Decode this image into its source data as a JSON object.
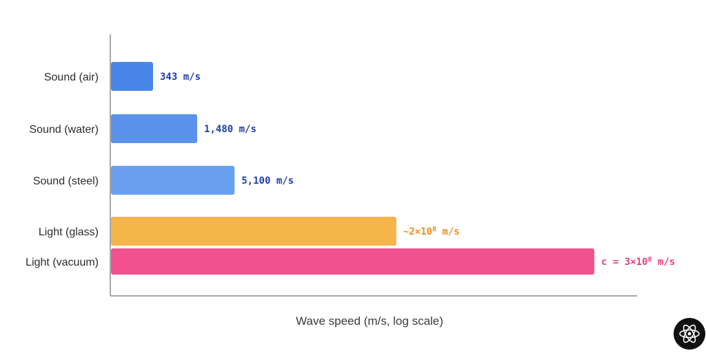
{
  "chart_data": {
    "type": "bar",
    "orientation": "horizontal",
    "xlabel": "Wave speed (m/s, log scale)",
    "ylabel": "",
    "title": "",
    "xscale": "log",
    "grid": false,
    "categories": [
      "Sound (air)",
      "Sound (water)",
      "Sound (steel)",
      "Light (glass)",
      "Light (vacuum)"
    ],
    "values": [
      343,
      1480,
      5100,
      200000000,
      300000000
    ],
    "value_labels": [
      {
        "text": "343 m/s"
      },
      {
        "text": "1,480 m/s"
      },
      {
        "text": "5,100 m/s"
      },
      {
        "base": "~2×10",
        "exp": "8",
        "unit": " m/s"
      },
      {
        "base": "c = 3×10",
        "exp": "8",
        "unit": " m/s"
      }
    ],
    "colors": [
      "#4a86e8",
      "#5b93ec",
      "#6aa0f0",
      "#f5b54a",
      "#f2508f"
    ],
    "label_colors": [
      "#1f3fa8",
      "#1f3fa8",
      "#1f3fa8",
      "#f08c1a",
      "#e83d82"
    ]
  },
  "logo": {
    "icon": "atom-icon"
  }
}
